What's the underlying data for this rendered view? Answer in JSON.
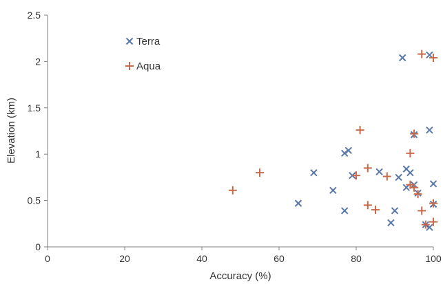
{
  "chart_data": {
    "type": "scatter",
    "xlabel": "Accuracy (%)",
    "ylabel": "Elevation (km)",
    "xlim": [
      0,
      100
    ],
    "ylim": [
      0,
      2.5
    ],
    "x_ticks": [
      0,
      20,
      40,
      60,
      80,
      100
    ],
    "y_ticks": [
      0,
      0.5,
      1,
      1.5,
      2,
      2.5
    ],
    "x_tick_labels": [
      "0",
      "20",
      "40",
      "60",
      "80",
      "100"
    ],
    "y_tick_labels": [
      "0",
      "0.5",
      "1",
      "1.5",
      "2",
      "2.5"
    ],
    "grid": false,
    "legend_placement": "top-left",
    "series": [
      {
        "name": "Terra",
        "marker": "x",
        "color": "#5a77a8",
        "points": [
          [
            65,
            0.47
          ],
          [
            69,
            0.8
          ],
          [
            74,
            0.61
          ],
          [
            77,
            0.39
          ],
          [
            77,
            1.01
          ],
          [
            78,
            1.04
          ],
          [
            79,
            0.77
          ],
          [
            86,
            0.81
          ],
          [
            89,
            0.26
          ],
          [
            90,
            0.39
          ],
          [
            91,
            0.75
          ],
          [
            92,
            2.04
          ],
          [
            93,
            0.64
          ],
          [
            93,
            0.84
          ],
          [
            94,
            0.8
          ],
          [
            95,
            1.21
          ],
          [
            95,
            0.67
          ],
          [
            96,
            0.58
          ],
          [
            98,
            0.24
          ],
          [
            99,
            0.21
          ],
          [
            99,
            1.26
          ],
          [
            99,
            2.07
          ],
          [
            100,
            0.68
          ],
          [
            100,
            0.46
          ]
        ]
      },
      {
        "name": "Aqua",
        "marker": "+",
        "color": "#c8694a",
        "points": [
          [
            48,
            0.61
          ],
          [
            55,
            0.8
          ],
          [
            80,
            0.77
          ],
          [
            81,
            1.26
          ],
          [
            83,
            0.85
          ],
          [
            83,
            0.45
          ],
          [
            85,
            0.4
          ],
          [
            88,
            0.76
          ],
          [
            94,
            1.01
          ],
          [
            94,
            0.67
          ],
          [
            95,
            1.22
          ],
          [
            95,
            0.64
          ],
          [
            96,
            0.57
          ],
          [
            97,
            0.39
          ],
          [
            97,
            2.08
          ],
          [
            98,
            0.24
          ],
          [
            100,
            0.27
          ],
          [
            100,
            0.47
          ],
          [
            100,
            2.04
          ]
        ]
      }
    ]
  }
}
